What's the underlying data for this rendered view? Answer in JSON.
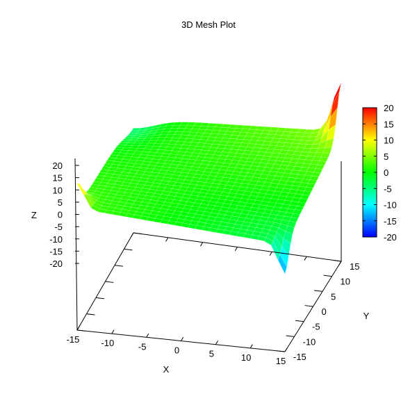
{
  "chart_data": {
    "type": "surface",
    "title": "3D Mesh Plot",
    "xlabel": "X",
    "ylabel": "Y",
    "zlabel": "Z",
    "xlim": [
      -15,
      15
    ],
    "ylim": [
      -15,
      15
    ],
    "zlim": [
      -20,
      20
    ],
    "x_ticks": [
      -15,
      -10,
      -5,
      0,
      5,
      10,
      15
    ],
    "y_ticks": [
      -15,
      -10,
      -5,
      0,
      5,
      10,
      15
    ],
    "z_ticks": [
      -20,
      -15,
      -10,
      -5,
      0,
      5,
      10,
      15,
      20
    ],
    "colorbar": {
      "ticks": [
        -20,
        -15,
        -10,
        -5,
        0,
        5,
        10,
        15,
        20
      ],
      "range": [
        -20,
        20
      ],
      "colors": [
        "#0000ff",
        "#00ffff",
        "#00ff00",
        "#ffff00",
        "#ff0000"
      ]
    },
    "corner_values": {
      "x_min_y_min": 10,
      "x_max_y_min": -14,
      "x_min_y_max": -2,
      "x_max_y_max": 23
    }
  }
}
